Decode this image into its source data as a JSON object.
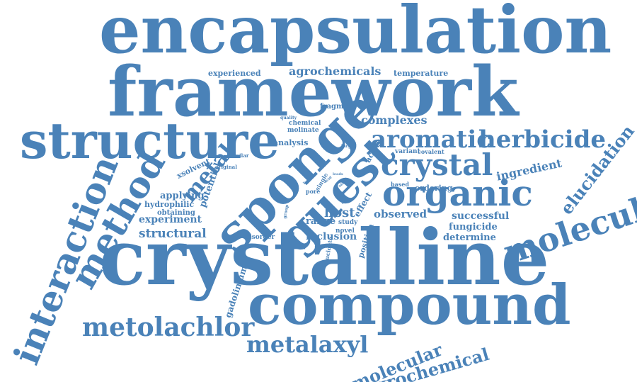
{
  "color": "#4a82b8",
  "words": [
    "encapsulation",
    "framework",
    "structure",
    "crystalline",
    "compound",
    "sponge",
    "guest",
    "organic",
    "molecule",
    "aromatic",
    "herbicide",
    "crystal",
    "interaction",
    "method",
    "metolachlor",
    "metalaxyl",
    "molecular",
    "agrochemical",
    "elucidation",
    "metal",
    "agrochemicals",
    "experienced",
    "temperature",
    "fragment",
    "complexes",
    "ingredient",
    "chemical",
    "molinate",
    "analysis",
    "xsolvent",
    "similar",
    "original",
    "potential",
    "applying",
    "hydrophilic",
    "obtaining",
    "experiment",
    "structural",
    "variant",
    "covalent",
    "target",
    "active",
    "ordering",
    "based",
    "successful",
    "fungicide",
    "determine",
    "host",
    "observed",
    "range",
    "study",
    "novel",
    "inclusion",
    "position",
    "effect",
    "disorder",
    "gadolinium",
    "elucidate",
    "single",
    "pore",
    "quality",
    "level",
    "bond",
    "acid",
    "ability",
    "leads",
    "able",
    "group"
  ]
}
